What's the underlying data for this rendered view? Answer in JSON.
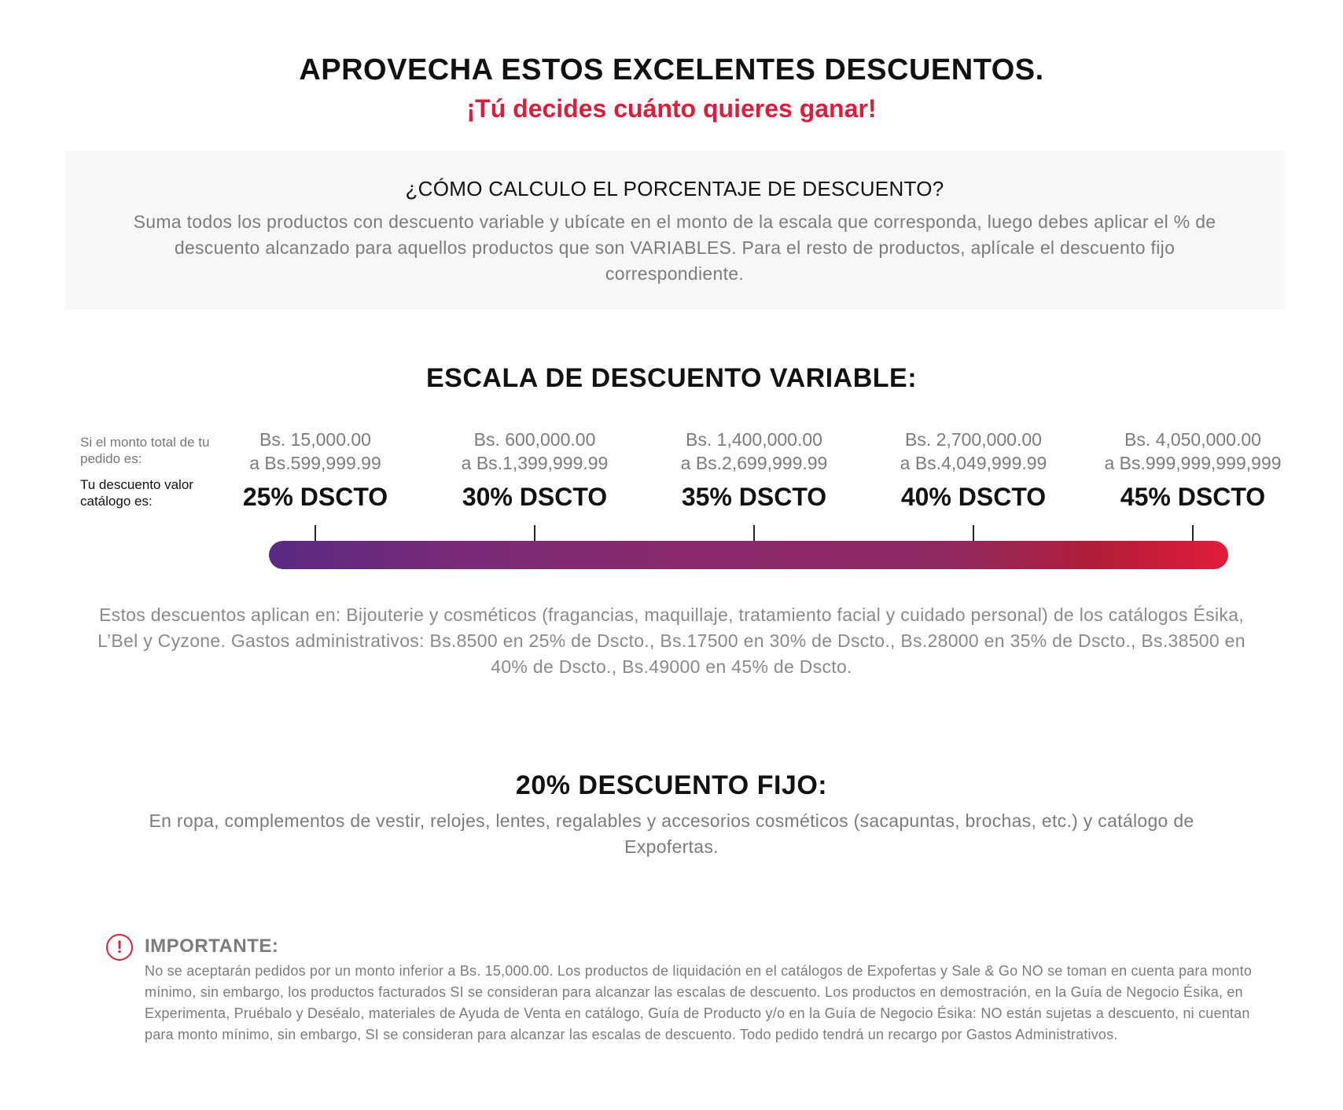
{
  "header": {
    "title": "APROVECHA ESTOS EXCELENTES DESCUENTOS.",
    "subtitle": "¡Tú decides cuánto quieres ganar!"
  },
  "info": {
    "question": "¿CÓMO CALCULO EL PORCENTAJE DE DESCUENTO?",
    "text": "Suma todos los productos con descuento variable y ubícate en el monto de la escala que corresponda, luego debes aplicar el % de descuento alcanzado para aquellos productos que son VARIABLES. Para el resto de productos, aplícale el descuento fijo correspondiente."
  },
  "scale": {
    "title": "ESCALA DE DESCUENTO VARIABLE:",
    "label_amount": "Si el monto total de tu pedido es:",
    "label_discount": "Tu descuento valor catálogo es:",
    "tiers": [
      {
        "from": "Bs. 15,000.00",
        "to": "a Bs.599,999.99",
        "pct": "25% DSCTO"
      },
      {
        "from": "Bs. 600,000.00",
        "to": "a Bs.1,399,999.99",
        "pct": "30% DSCTO"
      },
      {
        "from": "Bs. 1,400,000.00",
        "to": "a Bs.2,699,999.99",
        "pct": "35% DSCTO"
      },
      {
        "from": "Bs. 2,700,000.00",
        "to": "a Bs.4,049,999.99",
        "pct": "40% DSCTO"
      },
      {
        "from": "Bs. 4,050,000.00",
        "to": "a Bs.999,999,999,999",
        "pct": "45% DSCTO"
      }
    ],
    "bar_colors": [
      "#5a2a82",
      "#8e2a62",
      "#e31b3b"
    ],
    "applies_text": "Estos descuentos aplican en: Bijouterie y cosméticos (fragancias, maquillaje, tratamiento facial y cuidado personal) de los catálogos Ésika, L’Bel y Cyzone. Gastos administrativos: Bs.8500 en 25% de Dscto., Bs.17500 en 30% de Dscto., Bs.28000 en 35% de Dscto., Bs.38500 en 40% de Dscto., Bs.49000 en 45% de Dscto."
  },
  "fixed": {
    "title": "20% DESCUENTO FIJO:",
    "text": "En ropa, complementos de vestir, relojes, lentes, regalables y accesorios cosméticos (sacapuntas, brochas, etc.) y catálogo de Expofertas."
  },
  "important": {
    "icon": "exclamation-icon",
    "icon_glyph": "!",
    "title": "IMPORTANTE:",
    "text": "No se aceptarán pedidos por un monto inferior a Bs. 15,000.00. Los productos de liquidación en el catálogos de Expofertas y Sale & Go NO se toman en cuenta para monto mínimo, sin embargo, los productos facturados SI se consideran para alcanzar las escalas de descuento. Los productos en demostración, en la Guía de Negocio Ésika, en Experimenta, Pruébalo y Deséalo, materiales de Ayuda de Venta en catálogo, Guía de Producto y/o en la Guía de Negocio Ésika: NO están sujetas a descuento, ni cuentan para monto mínimo, sin embargo, SI se consideran para alcanzar las escalas de descuento. Todo pedido tendrá un recargo por Gastos Administrativos."
  },
  "colors": {
    "accent": "#e31b3b",
    "text_dark": "#111111",
    "text_gray": "#7c7c7c",
    "box_bg": "#f7f7f7"
  }
}
